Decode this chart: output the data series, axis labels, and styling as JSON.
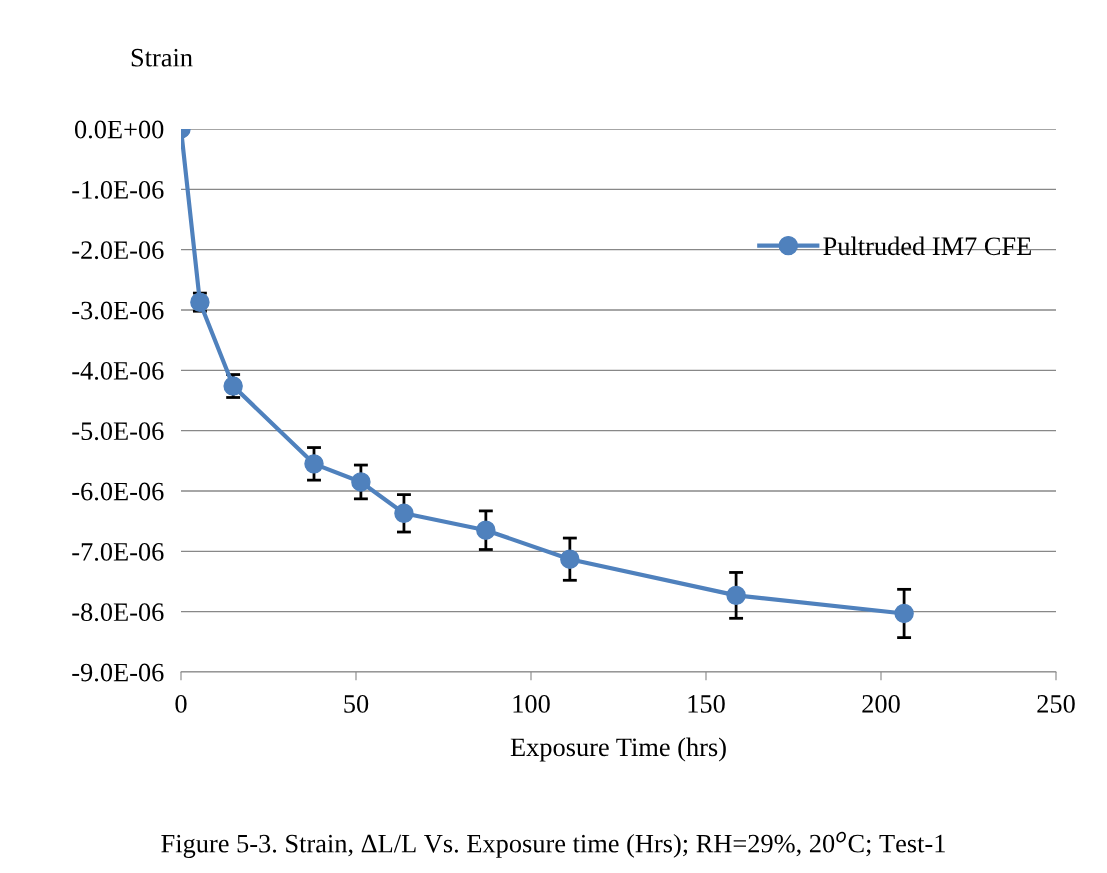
{
  "chart_data": {
    "type": "line",
    "ylabel": "Strain",
    "xlabel": "Exposure Time (hrs)",
    "annotations": [
      "Figure 5-3. Strain, ΔL/L Vs. Exposure time (Hrs); RH=29%, 20$^{o}$C; Test-1"
    ],
    "x": [
      0,
      5.4,
      14.9,
      38,
      51.4,
      63.7,
      87.1,
      111.1,
      158.6,
      206.6
    ],
    "series": [
      {
        "name": "Pultruded IM7 CFE",
        "color": "#4f81bd",
        "values": [
          0,
          -2.87e-06,
          -4.26e-06,
          -5.55e-06,
          -5.85e-06,
          -6.37e-06,
          -6.65e-06,
          -7.13e-06,
          -7.73e-06,
          -8.03e-06
        ],
        "errors": [
          null,
          1.5e-07,
          1.9e-07,
          2.7e-07,
          2.8e-07,
          3.1e-07,
          3.2e-07,
          3.5e-07,
          3.8e-07,
          4e-07
        ]
      }
    ],
    "xlim": [
      0,
      250
    ],
    "xticks": [
      0,
      50,
      100,
      150,
      200,
      250
    ],
    "ylim": [
      -9e-06,
      0
    ],
    "yticks": [
      {
        "value": 0,
        "label": "0.0E+00"
      },
      {
        "value": -1e-06,
        "label": "-1.0E-06"
      },
      {
        "value": -2e-06,
        "label": "-2.0E-06"
      },
      {
        "value": -3e-06,
        "label": "-3.0E-06"
      },
      {
        "value": -4e-06,
        "label": "-4.0E-06"
      },
      {
        "value": -5e-06,
        "label": "-5.0E-06"
      },
      {
        "value": -6e-06,
        "label": "-6.0E-06"
      },
      {
        "value": -7e-06,
        "label": "-7.0E-06"
      },
      {
        "value": -8e-06,
        "label": "-8.0E-06"
      },
      {
        "value": -9e-06,
        "label": "-9.0E-06"
      }
    ],
    "grid": "y",
    "legend": "right",
    "marker": "circle",
    "line_style": "solid"
  }
}
